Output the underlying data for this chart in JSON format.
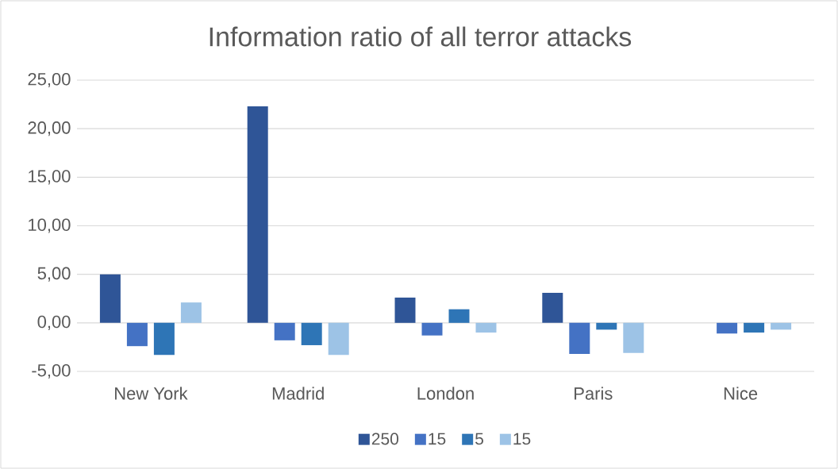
{
  "chart_data": {
    "type": "bar",
    "title": "Information ratio of all terror attacks",
    "categories": [
      "New York",
      "Madrid",
      "London",
      "Paris",
      "Nice"
    ],
    "series": [
      {
        "name": "250",
        "color": "#2f5597",
        "values": [
          5.0,
          22.3,
          2.6,
          3.1,
          null
        ]
      },
      {
        "name": "15",
        "color": "#4472c4",
        "values": [
          -2.4,
          -1.8,
          -1.3,
          -3.2,
          -1.1
        ]
      },
      {
        "name": "5",
        "color": "#2e75b6",
        "values": [
          -3.3,
          -2.3,
          1.4,
          -0.7,
          -1.0
        ]
      },
      {
        "name": "15",
        "color": "#9dc3e6",
        "values": [
          2.1,
          -3.3,
          -1.0,
          -3.1,
          -0.7
        ]
      }
    ],
    "ylim": [
      -5,
      25
    ],
    "yticks": [
      {
        "value": -5,
        "label": "-5,00"
      },
      {
        "value": 0,
        "label": "0,00"
      },
      {
        "value": 5,
        "label": "5,00"
      },
      {
        "value": 10,
        "label": "10,00"
      },
      {
        "value": 15,
        "label": "15,00"
      },
      {
        "value": 20,
        "label": "20,00"
      },
      {
        "value": 25,
        "label": "25,00"
      }
    ],
    "grid": "y",
    "legend": "bottom"
  }
}
